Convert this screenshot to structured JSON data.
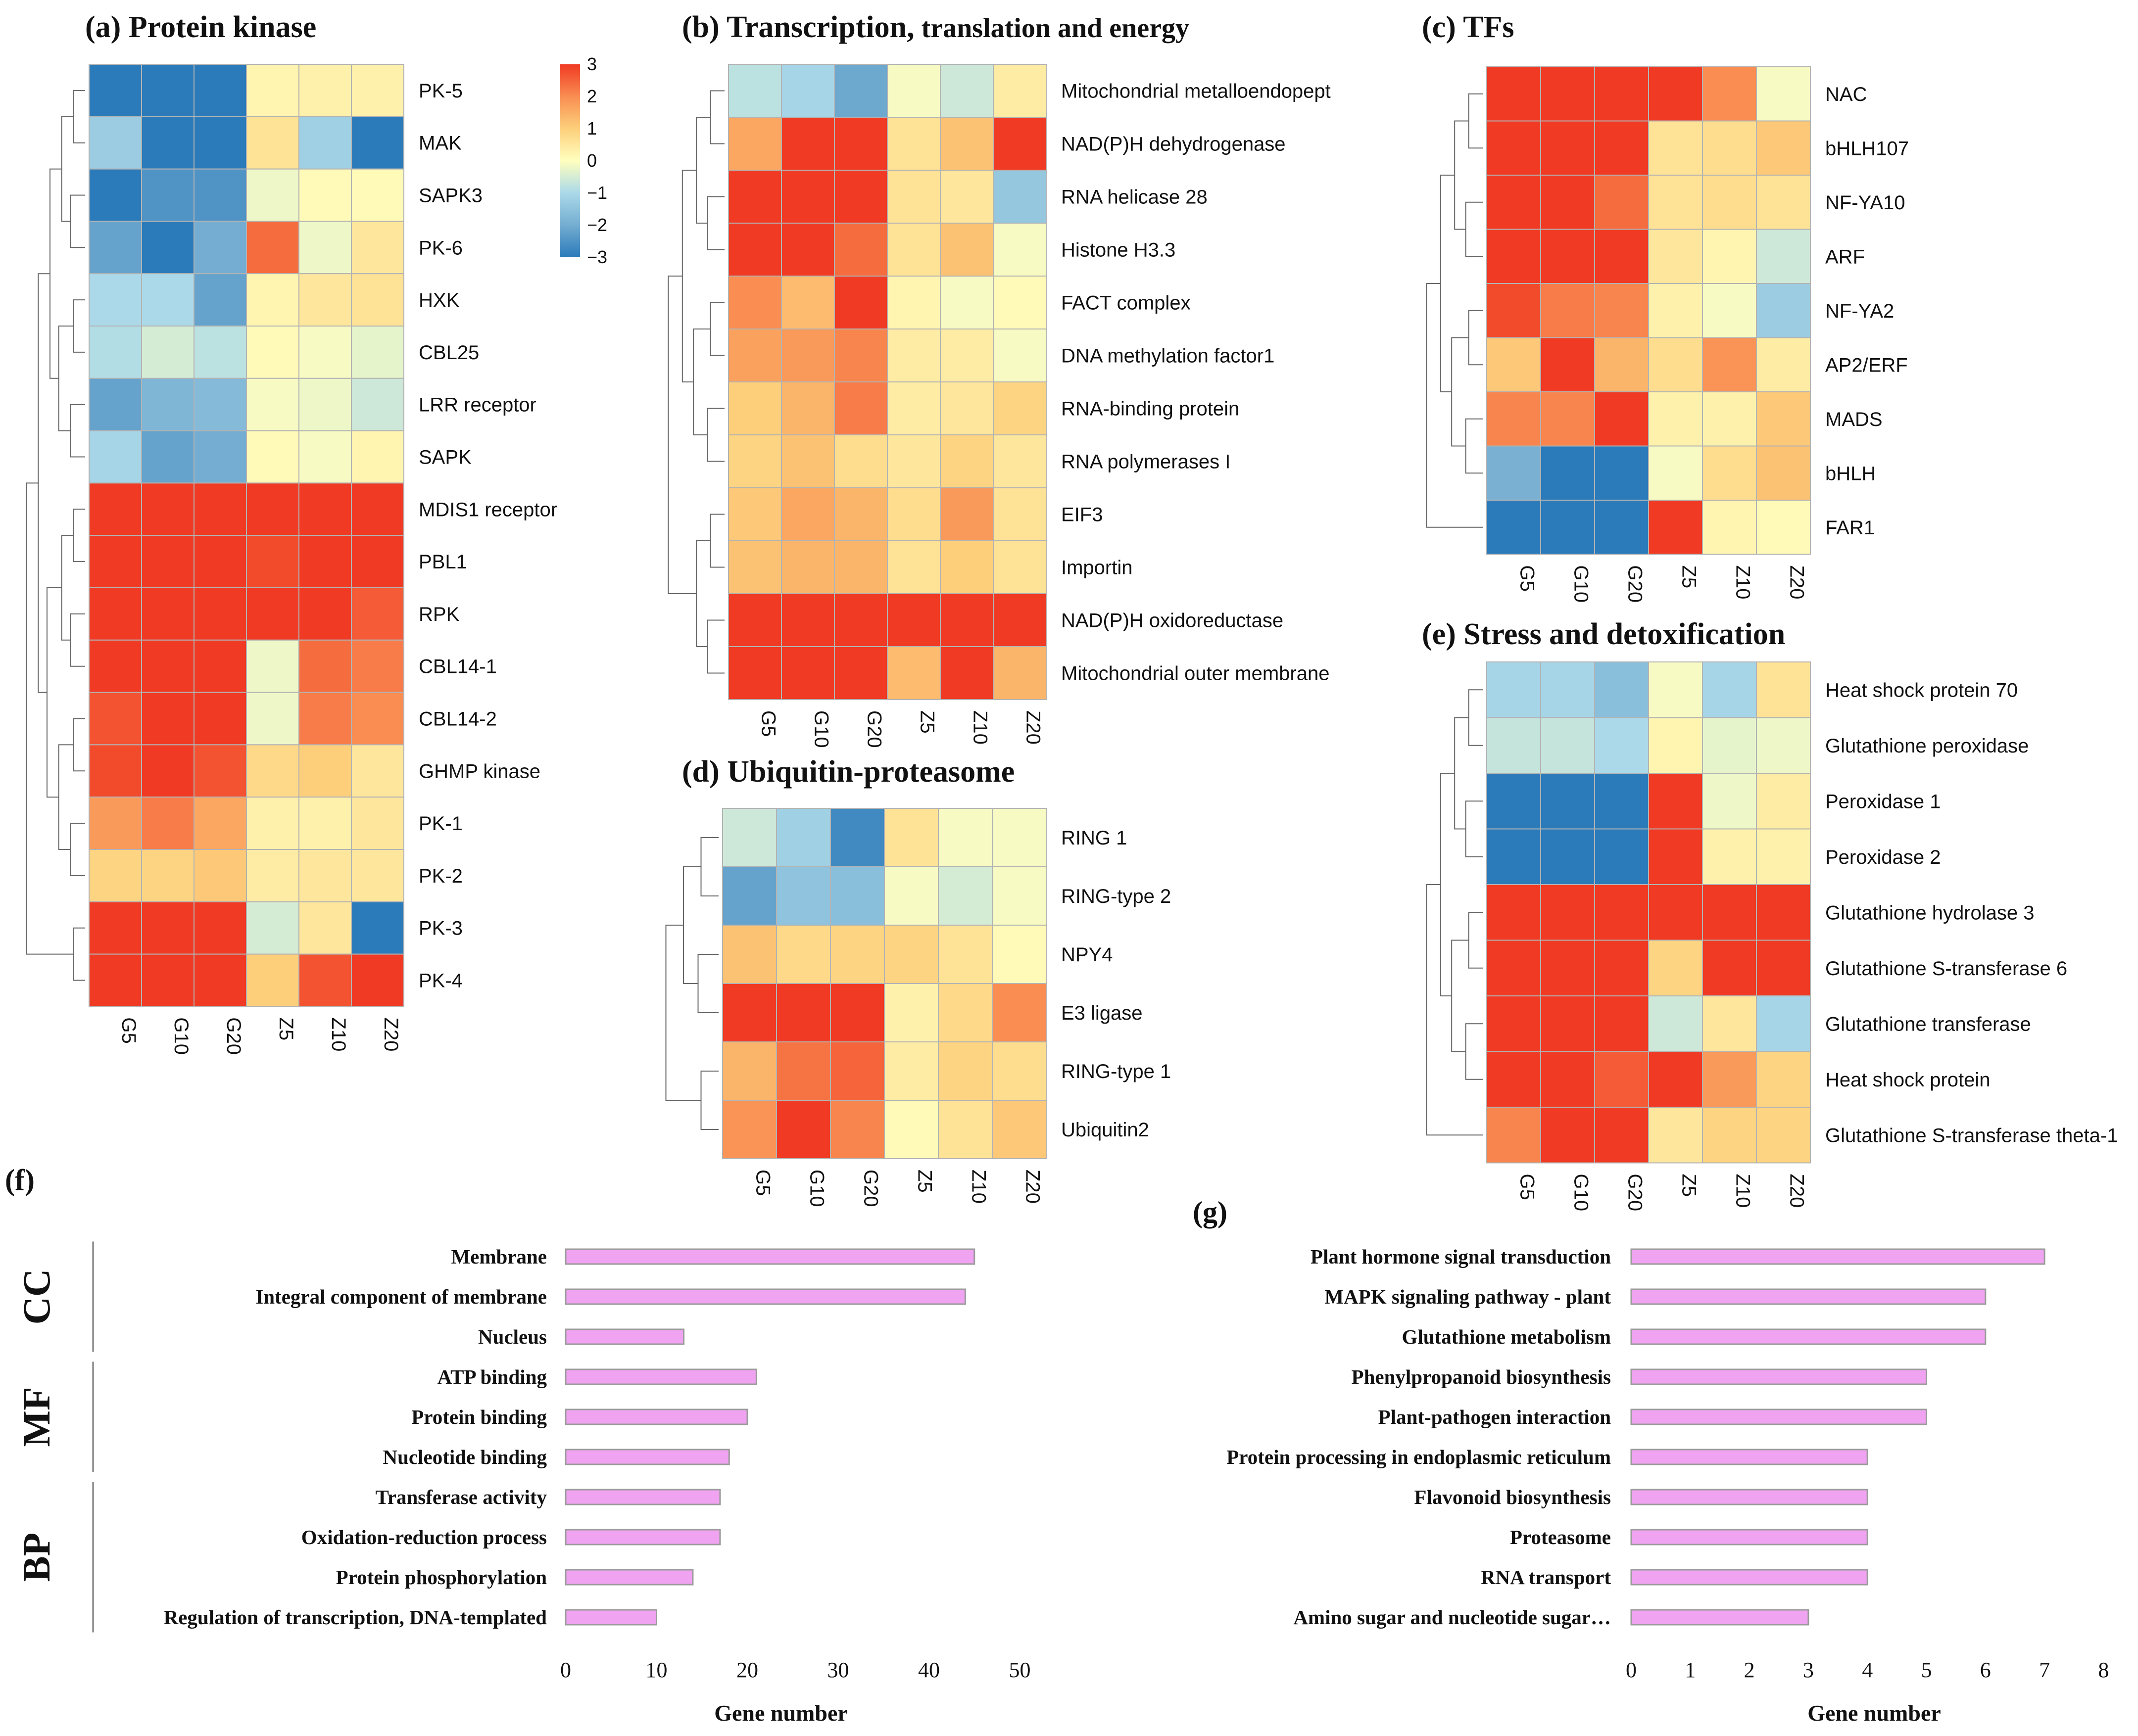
{
  "chart_data": {
    "heatmaps": [
      {
        "id": "a",
        "type": "heatmap",
        "title": "(a)  Protein kinase",
        "columns": [
          "G5",
          "G10",
          "G20",
          "Z5",
          "Z10",
          "Z20"
        ],
        "rows": [
          "PK-5",
          "MAK",
          "SAPK3",
          "PK-6",
          "HXK",
          "CBL25",
          "LRR receptor",
          "SAPK",
          "MDIS1 receptor",
          "PBL1",
          "RPK",
          "CBL14-1",
          "CBL14-2",
          "GHMP kinase",
          "PK-1",
          "PK-2",
          "PK-3",
          "PK-4"
        ],
        "values": [
          [
            -3,
            -3,
            -3,
            0.2,
            0.3,
            0.3
          ],
          [
            -1.3,
            -3,
            -3,
            0.6,
            -1.2,
            -3
          ],
          [
            -3,
            -2.5,
            -2.5,
            -0.2,
            0.1,
            0.1
          ],
          [
            -2.2,
            -3,
            -2,
            2.4,
            -0.2,
            0.5
          ],
          [
            -1,
            -1,
            -2.2,
            0.2,
            0.5,
            0.6
          ],
          [
            -0.9,
            -0.5,
            -0.8,
            0.1,
            -0.1,
            -0.3
          ],
          [
            -2.2,
            -1.8,
            -1.7,
            -0.1,
            -0.2,
            -0.6
          ],
          [
            -1.1,
            -2.2,
            -2,
            0.1,
            -0.1,
            0.2
          ],
          [
            3,
            3,
            3,
            3,
            3,
            3
          ],
          [
            3,
            3,
            3,
            2.8,
            3,
            3
          ],
          [
            3,
            3,
            3,
            3,
            3,
            2.6
          ],
          [
            3,
            3,
            3,
            -0.2,
            2.4,
            2.2
          ],
          [
            2.7,
            3,
            3,
            -0.2,
            2.2,
            2
          ],
          [
            2.8,
            3,
            2.7,
            0.8,
            1,
            0.5
          ],
          [
            1.8,
            2.2,
            1.6,
            0.3,
            0.3,
            0.5
          ],
          [
            0.9,
            0.9,
            1.1,
            0.4,
            0.5,
            0.5
          ],
          [
            3,
            3,
            3,
            -0.5,
            0.5,
            -3
          ],
          [
            3,
            3,
            3,
            1,
            2.7,
            3
          ]
        ],
        "colorbar": {
          "ticks": [
            "3",
            "2",
            "1",
            "0",
            "−1",
            "−2",
            "−3"
          ],
          "range": [
            -3,
            3
          ]
        }
      },
      {
        "id": "b",
        "type": "heatmap",
        "title_parts": [
          "(b)  Transcription,",
          " translation and energy"
        ],
        "columns": [
          "G5",
          "G10",
          "G20",
          "Z5",
          "Z10",
          "Z20"
        ],
        "rows": [
          "Mitochondrial metalloendopept",
          "NAD(P)H dehydrogenase",
          "RNA helicase 28",
          "Histone H3.3",
          "FACT complex",
          "DNA methylation factor1",
          "RNA-binding protein",
          "RNA polymerases I",
          "EIF3",
          "Importin",
          "NAD(P)H oxidoreductase",
          "Mitochondrial outer membrane"
        ],
        "values": [
          [
            -0.8,
            -1.1,
            -2.1,
            -0.1,
            -0.6,
            0.4
          ],
          [
            1.6,
            3,
            3,
            0.6,
            1.2,
            3
          ],
          [
            3,
            3,
            3,
            0.6,
            0.5,
            -1.4
          ],
          [
            3,
            3,
            2.4,
            0.6,
            1.2,
            -0.1
          ],
          [
            2,
            1.3,
            3,
            0.2,
            -0.1,
            0.1
          ],
          [
            1.7,
            1.8,
            2.1,
            0.4,
            0.4,
            -0.1
          ],
          [
            1,
            1.4,
            2.2,
            0.4,
            0.5,
            0.9
          ],
          [
            0.9,
            1.2,
            0.7,
            0.5,
            0.9,
            0.5
          ],
          [
            1.1,
            1.6,
            1.4,
            0.7,
            1.8,
            0.6
          ],
          [
            1.2,
            1.4,
            1.4,
            0.6,
            1.0,
            0.6
          ],
          [
            3,
            3,
            3,
            3,
            3,
            3
          ],
          [
            3,
            3,
            3,
            1.3,
            3,
            1.4
          ]
        ]
      },
      {
        "id": "c",
        "type": "heatmap",
        "title": "(c)  TFs",
        "columns": [
          "G5",
          "G10",
          "G20",
          "Z5",
          "Z10",
          "Z20"
        ],
        "rows": [
          "NAC",
          "bHLH107",
          "NF-YA10",
          "ARF",
          "NF-YA2",
          "AP2/ERF",
          "MADS",
          "bHLH",
          "FAR1"
        ],
        "values": [
          [
            3,
            3,
            3,
            3,
            2,
            -0.1
          ],
          [
            3,
            3,
            3,
            0.6,
            0.7,
            1.1
          ],
          [
            3,
            3,
            2.4,
            0.6,
            0.7,
            0.6
          ],
          [
            3,
            3,
            3,
            0.5,
            0.2,
            -0.6
          ],
          [
            2.8,
            2.2,
            2.1,
            0.3,
            -0.1,
            -1.3
          ],
          [
            1.1,
            3,
            1.4,
            0.7,
            1.9,
            0.4
          ],
          [
            2.1,
            2.1,
            3,
            0.3,
            0.3,
            1.1
          ],
          [
            -1.9,
            -3,
            -3,
            -0.1,
            0.7,
            1.2
          ],
          [
            -3,
            -3,
            -3,
            3,
            0.2,
            0.1
          ]
        ]
      },
      {
        "id": "d",
        "type": "heatmap",
        "title": "(d)  Ubiquitin-proteasome",
        "columns": [
          "G5",
          "G10",
          "G20",
          "Z5",
          "Z10",
          "Z20"
        ],
        "rows": [
          "RING 1",
          "RING-type 2",
          "NPY4",
          "E3 ligase",
          "RING-type 1",
          "Ubiquitin2"
        ],
        "values": [
          [
            -0.6,
            -1.2,
            -2.7,
            0.6,
            -0.1,
            -0.1
          ],
          [
            -2.2,
            -1.5,
            -1.6,
            -0.1,
            -0.5,
            -0.1
          ],
          [
            1.2,
            0.8,
            0.9,
            0.9,
            0.6,
            0.1
          ],
          [
            3,
            3,
            3,
            0.3,
            0.8,
            2
          ],
          [
            1.4,
            2.3,
            2.5,
            0.4,
            0.9,
            0.7
          ],
          [
            1.9,
            3,
            2.1,
            0.1,
            0.6,
            1.1
          ]
        ]
      },
      {
        "id": "e",
        "type": "heatmap",
        "title": "(e)  Stress and detoxification",
        "columns": [
          "G5",
          "G10",
          "G20",
          "Z5",
          "Z10",
          "Z20"
        ],
        "rows": [
          "Heat shock protein 70",
          "Glutathione peroxidase",
          "Peroxidase 1",
          "Peroxidase 2",
          "Glutathione hydrolase 3",
          "Glutathione S-transferase 6",
          "Glutathione transferase",
          "Heat shock protein",
          "Glutathione S-transferase theta-1"
        ],
        "values": [
          [
            -1.1,
            -1.1,
            -1.6,
            -0.1,
            -1.1,
            0.6
          ],
          [
            -0.7,
            -0.7,
            -1.0,
            0.2,
            -0.3,
            -0.2
          ],
          [
            -3,
            -3,
            -3,
            3,
            -0.2,
            0.4
          ],
          [
            -3,
            -3,
            -3,
            3,
            0.3,
            0.3
          ],
          [
            3,
            3,
            3,
            3,
            3,
            3
          ],
          [
            3,
            3,
            3,
            0.9,
            3,
            3
          ],
          [
            3,
            3,
            3,
            -0.6,
            0.5,
            -1.1
          ],
          [
            3,
            3,
            2.6,
            3,
            1.8,
            0.9
          ],
          [
            2.1,
            3,
            3,
            0.5,
            0.9,
            0.9
          ]
        ]
      }
    ],
    "bars": [
      {
        "id": "f",
        "type": "bar",
        "panel_label": "(f)",
        "orientation": "horizontal",
        "xlabel": "Gene number",
        "xlim": [
          0,
          50
        ],
        "xticks": [
          0,
          10,
          20,
          30,
          40,
          50
        ],
        "groups": [
          {
            "label": "CC",
            "start": 0,
            "end": 2
          },
          {
            "label": "MF",
            "start": 3,
            "end": 5
          },
          {
            "label": "BP",
            "start": 6,
            "end": 9
          }
        ],
        "categories": [
          "Membrane",
          "Integral component of membrane",
          "Nucleus",
          "ATP binding",
          "Protein binding",
          "Nucleotide binding",
          "Transferase activity",
          "Oxidation-reduction process",
          "Protein phosphorylation",
          "Regulation of transcription, DNA-templated"
        ],
        "values": [
          45,
          44,
          13,
          21,
          20,
          18,
          17,
          17,
          14,
          10
        ]
      },
      {
        "id": "g",
        "type": "bar",
        "panel_label": "(g)",
        "orientation": "horizontal",
        "xlabel": "Gene number",
        "xlim": [
          0,
          8
        ],
        "xticks": [
          0,
          1,
          2,
          3,
          4,
          5,
          6,
          7,
          8
        ],
        "categories": [
          "Plant hormone signal transduction",
          "MAPK signaling pathway - plant",
          "Glutathione metabolism",
          "Phenylpropanoid biosynthesis",
          "Plant-pathogen interaction",
          "Protein processing in endoplasmic reticulum",
          "Flavonoid biosynthesis",
          "Proteasome",
          "RNA transport",
          "Amino sugar and nucleotide sugar…"
        ],
        "values": [
          7,
          6,
          6,
          5,
          5,
          4,
          4,
          4,
          4,
          3
        ]
      }
    ],
    "colors": {
      "heat_low": "#2b7bba",
      "heat_mid": "#ffffbf",
      "heat_high": "#f03a23",
      "bar_fill": "#f0a3f0",
      "bar_stroke": "#9b9b9b",
      "grid_line": "#b3b3b3"
    }
  }
}
